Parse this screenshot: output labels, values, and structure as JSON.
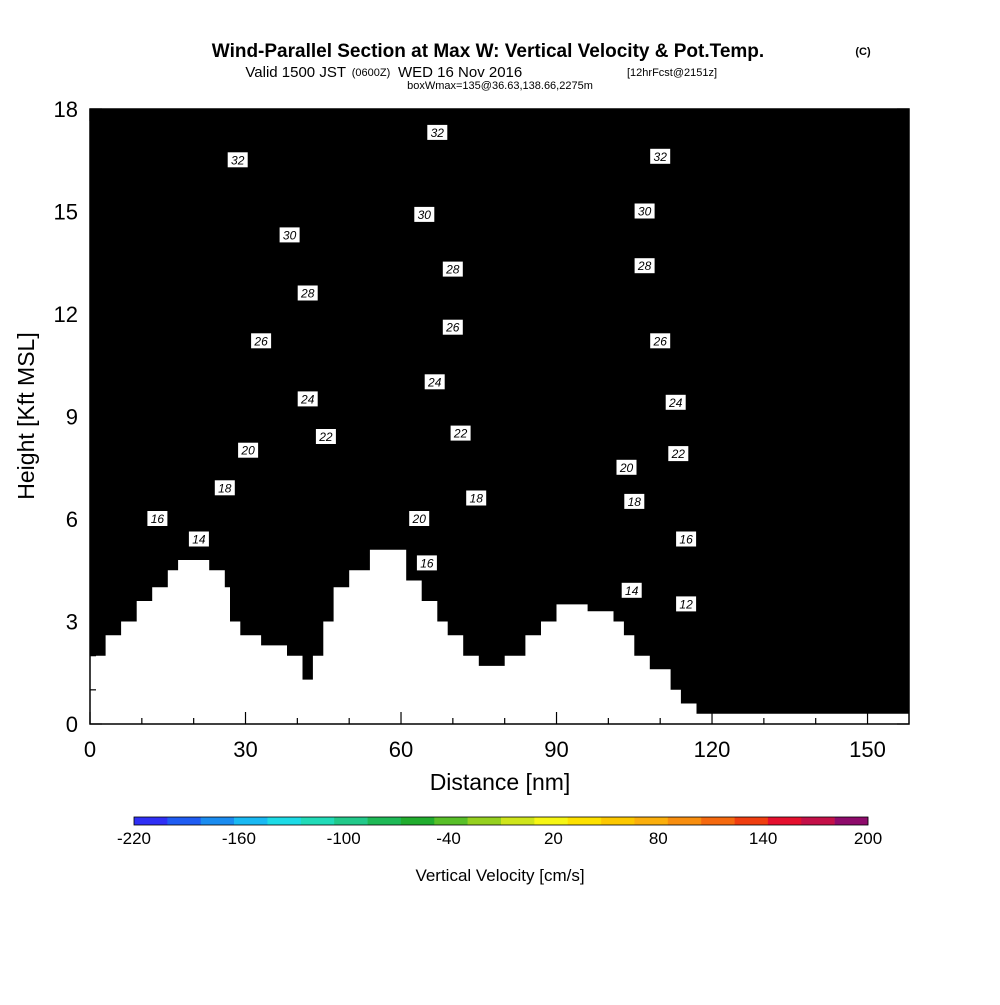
{
  "chart_data": {
    "type": "heatmap",
    "title": "Wind-Parallel Section at Max W: Vertical Velocity & Pot.Temp.",
    "title_unit": "(C)",
    "subtitle_main": "Valid 1500 JST",
    "subtitle_utc": "(0600Z)",
    "subtitle_date": "WED 16 Nov 2016",
    "subtitle_fcst": "[12hrFcst@2151z]",
    "subtitle2": "boxWmax=135@36.63,138.66,2275m",
    "xlabel": "Distance [nm]",
    "ylabel": "Height [Kft MSL]",
    "xlim": [
      0,
      158
    ],
    "ylim": [
      0,
      18
    ],
    "xticks": [
      "0",
      "30",
      "60",
      "90",
      "120",
      "150"
    ],
    "yticks": [
      "0",
      "3",
      "6",
      "9",
      "12",
      "15",
      "18"
    ],
    "colorbar": {
      "label": "Vertical Velocity [cm/s]",
      "tick_labels": [
        "-220",
        "-160",
        "-100",
        "-40",
        "20",
        "80",
        "140",
        "200"
      ],
      "tick_values": [
        -220,
        -160,
        -100,
        -40,
        20,
        80,
        140,
        200
      ],
      "min": -220,
      "max": 200,
      "colors": [
        "#2f2ff5",
        "#1f5cf2",
        "#1a8cf0",
        "#19b9f3",
        "#1ddbe6",
        "#21dbb8",
        "#22c98a",
        "#1eb956",
        "#21ad2e",
        "#58bf28",
        "#95d01f",
        "#cfe51b",
        "#f6f614",
        "#fde100",
        "#fcc800",
        "#fbaf0c",
        "#f88e0f",
        "#f5690f",
        "#f03e10",
        "#e5102e",
        "#c41048",
        "#8e0b6b"
      ]
    },
    "contour_labels": [
      {
        "text": "32",
        "x": 28.5,
        "y": 16.5
      },
      {
        "text": "30",
        "x": 38.5,
        "y": 14.3
      },
      {
        "text": "28",
        "x": 42,
        "y": 12.6
      },
      {
        "text": "26",
        "x": 33,
        "y": 11.2
      },
      {
        "text": "24",
        "x": 42,
        "y": 9.5
      },
      {
        "text": "22",
        "x": 45.5,
        "y": 8.4
      },
      {
        "text": "20",
        "x": 30.5,
        "y": 8.0
      },
      {
        "text": "18",
        "x": 26,
        "y": 6.9
      },
      {
        "text": "16",
        "x": 13,
        "y": 6.0
      },
      {
        "text": "14",
        "x": 21,
        "y": 5.4
      },
      {
        "text": "32",
        "x": 67,
        "y": 17.3
      },
      {
        "text": "30",
        "x": 64.5,
        "y": 14.9
      },
      {
        "text": "28",
        "x": 70,
        "y": 13.3
      },
      {
        "text": "26",
        "x": 70,
        "y": 11.6
      },
      {
        "text": "24",
        "x": 66.5,
        "y": 10.0
      },
      {
        "text": "22",
        "x": 71.5,
        "y": 8.5
      },
      {
        "text": "20",
        "x": 63.5,
        "y": 6.0
      },
      {
        "text": "18",
        "x": 74.5,
        "y": 6.6
      },
      {
        "text": "16",
        "x": 65,
        "y": 4.7
      },
      {
        "text": "32",
        "x": 110,
        "y": 16.6
      },
      {
        "text": "30",
        "x": 107,
        "y": 15.0
      },
      {
        "text": "28",
        "x": 107,
        "y": 13.4
      },
      {
        "text": "26",
        "x": 110,
        "y": 11.2
      },
      {
        "text": "24",
        "x": 113,
        "y": 9.4
      },
      {
        "text": "22",
        "x": 113.5,
        "y": 7.9
      },
      {
        "text": "20",
        "x": 103.5,
        "y": 7.5
      },
      {
        "text": "18",
        "x": 105,
        "y": 6.5
      },
      {
        "text": "16",
        "x": 115,
        "y": 5.4
      },
      {
        "text": "14",
        "x": 104.5,
        "y": 3.9
      },
      {
        "text": "12",
        "x": 115,
        "y": 3.5
      }
    ]
  }
}
